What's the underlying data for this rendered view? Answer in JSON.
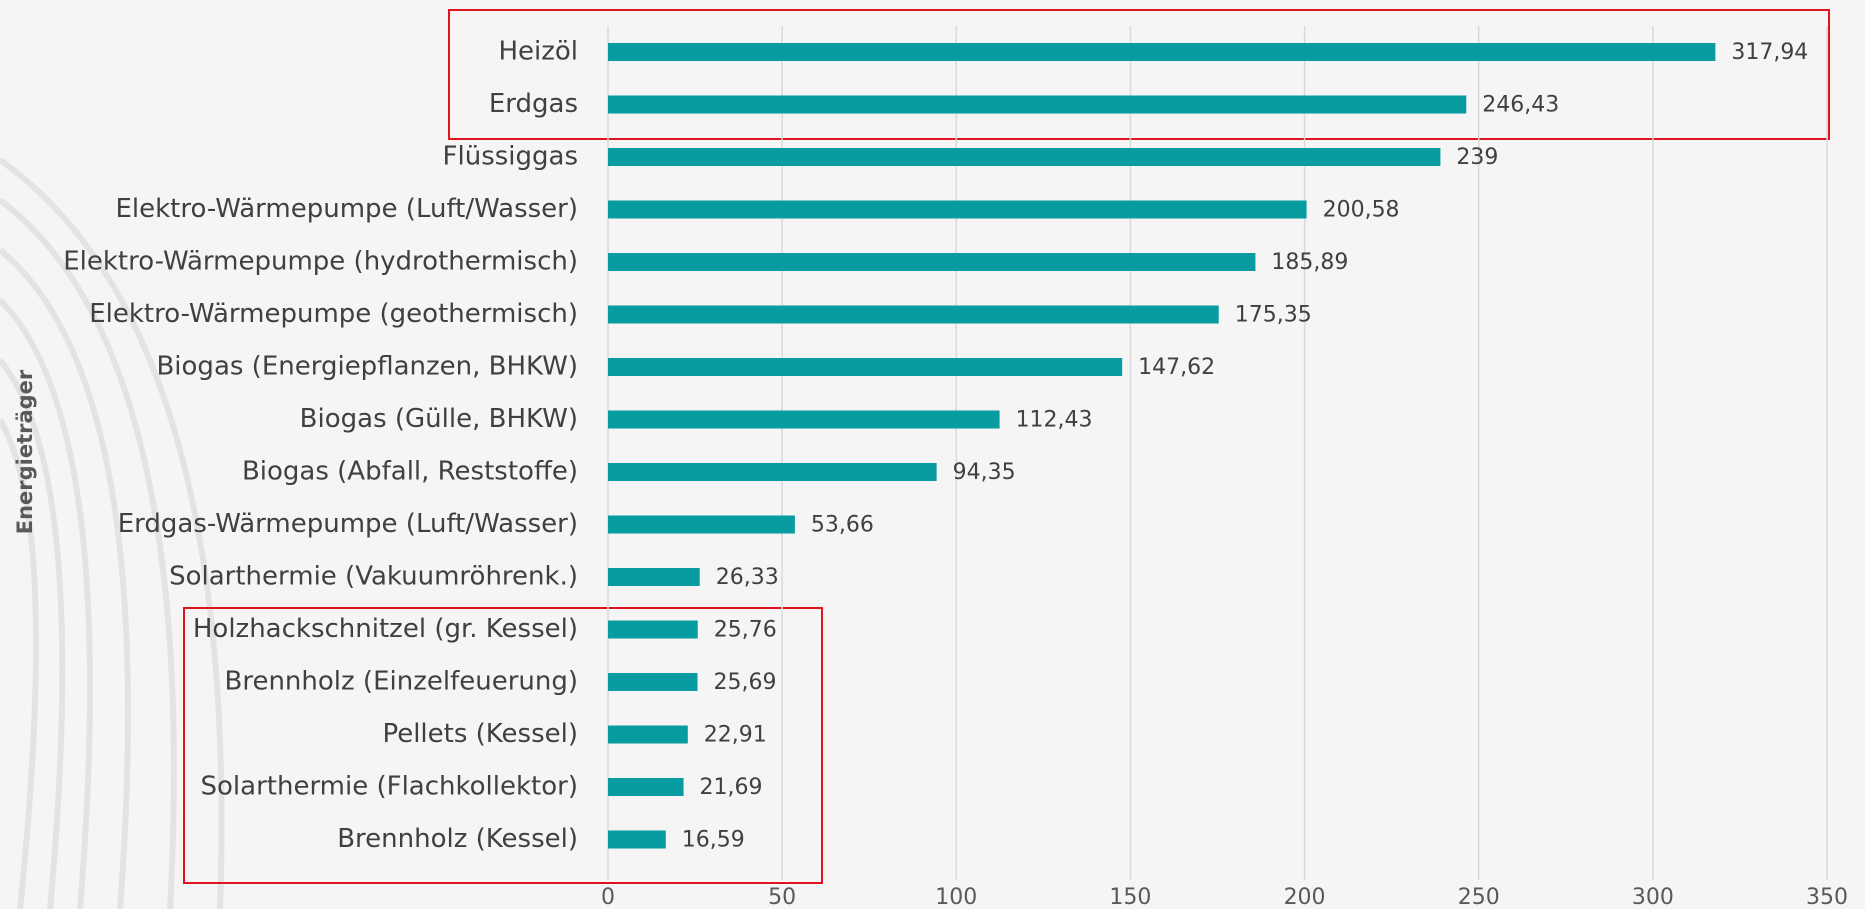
{
  "chart_data": {
    "type": "bar",
    "orientation": "horizontal",
    "y_axis_label": "Energieträger",
    "categories": [
      "Heizöl",
      "Erdgas",
      "Flüssiggas",
      "Elektro-Wärmepumpe (Luft/Wasser)",
      "Elektro-Wärmepumpe (hydrothermisch)",
      "Elektro-Wärmepumpe (geothermisch)",
      "Biogas (Energiepflanzen, BHKW)",
      "Biogas (Gülle, BHKW)",
      "Biogas (Abfall, Reststoffe)",
      "Erdgas-Wärmepumpe (Luft/Wasser)",
      "Solarthermie (Vakuumröhrenk.)",
      "Holzhackschnitzel (gr. Kessel)",
      "Brennholz (Einzelfeuerung)",
      "Pellets (Kessel)",
      "Solarthermie (Flachkollektor)",
      "Brennholz (Kessel)"
    ],
    "values": [
      317.94,
      246.43,
      239,
      200.58,
      185.89,
      175.35,
      147.62,
      112.43,
      94.35,
      53.66,
      26.33,
      25.76,
      25.69,
      22.91,
      21.69,
      16.59
    ],
    "value_labels": [
      "317,94",
      "246,43",
      "239",
      "200,58",
      "185,89",
      "175,35",
      "147,62",
      "112,43",
      "94,35",
      "53,66",
      "26,33",
      "25,76",
      "25,69",
      "22,91",
      "21,69",
      "16,59"
    ],
    "color": "#089ca1",
    "xlim": [
      0,
      350
    ],
    "xticks": [
      0,
      50,
      100,
      150,
      200,
      250,
      300,
      350
    ],
    "grid": true
  }
}
